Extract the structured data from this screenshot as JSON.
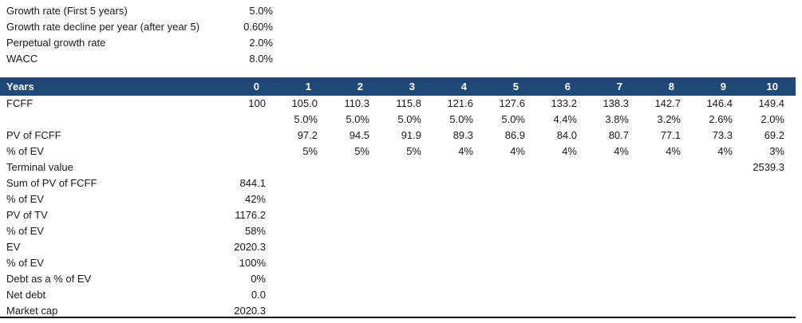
{
  "assumptions": {
    "rows": [
      {
        "label": "Growth rate (First 5 years)",
        "value": "5.0%"
      },
      {
        "label": "Growth rate decline per year (after year 5)",
        "value": "0.60%"
      },
      {
        "label": "Perpetual growth rate",
        "value": "2.0%"
      },
      {
        "label": "WACC",
        "value": "8.0%"
      }
    ]
  },
  "table": {
    "header": {
      "label": "Years",
      "columns": [
        "0",
        "1",
        "2",
        "3",
        "4",
        "5",
        "6",
        "7",
        "8",
        "9",
        "10"
      ]
    },
    "rows": [
      {
        "label": "FCFF",
        "cells": [
          "100",
          "105.0",
          "110.3",
          "115.8",
          "121.6",
          "127.6",
          "133.2",
          "138.3",
          "142.7",
          "146.4",
          "149.4"
        ]
      },
      {
        "label": "",
        "cells": [
          "",
          "5.0%",
          "5.0%",
          "5.0%",
          "5.0%",
          "5.0%",
          "4.4%",
          "3.8%",
          "3.2%",
          "2.6%",
          "2.0%"
        ]
      },
      {
        "label": "PV of FCFF",
        "cells": [
          "",
          "97.2",
          "94.5",
          "91.9",
          "89.3",
          "86.9",
          "84.0",
          "80.7",
          "77.1",
          "73.3",
          "69.2"
        ]
      },
      {
        "label": "% of EV",
        "cells": [
          "",
          "5%",
          "5%",
          "5%",
          "4%",
          "4%",
          "4%",
          "4%",
          "4%",
          "4%",
          "3%"
        ]
      },
      {
        "label": "Terminal value",
        "cells": [
          "",
          "",
          "",
          "",
          "",
          "",
          "",
          "",
          "",
          "",
          "2539.3"
        ]
      },
      {
        "label": "Sum of PV of FCFF",
        "cells": [
          "844.1",
          "",
          "",
          "",
          "",
          "",
          "",
          "",
          "",
          "",
          ""
        ]
      },
      {
        "label": "% of EV",
        "cells": [
          "42%",
          "",
          "",
          "",
          "",
          "",
          "",
          "",
          "",
          "",
          ""
        ]
      },
      {
        "label": "PV of TV",
        "cells": [
          "1176.2",
          "",
          "",
          "",
          "",
          "",
          "",
          "",
          "",
          "",
          ""
        ]
      },
      {
        "label": "% of EV",
        "cells": [
          "58%",
          "",
          "",
          "",
          "",
          "",
          "",
          "",
          "",
          "",
          ""
        ]
      },
      {
        "label": "EV",
        "cells": [
          "2020.3",
          "",
          "",
          "",
          "",
          "",
          "",
          "",
          "",
          "",
          ""
        ]
      },
      {
        "label": "% of EV",
        "cells": [
          "100%",
          "",
          "",
          "",
          "",
          "",
          "",
          "",
          "",
          "",
          ""
        ]
      },
      {
        "label": "Debt as a % of EV",
        "cells": [
          "0%",
          "",
          "",
          "",
          "",
          "",
          "",
          "",
          "",
          "",
          ""
        ]
      },
      {
        "label": "Net debt",
        "cells": [
          "0.0",
          "",
          "",
          "",
          "",
          "",
          "",
          "",
          "",
          "",
          ""
        ]
      },
      {
        "label": "Market cap",
        "cells": [
          "2020.3",
          "",
          "",
          "",
          "",
          "",
          "",
          "",
          "",
          "",
          ""
        ]
      }
    ]
  },
  "colors": {
    "header_bg": "#1F4979",
    "header_text": "#FFFFFF",
    "bottom_border": "#141414"
  }
}
